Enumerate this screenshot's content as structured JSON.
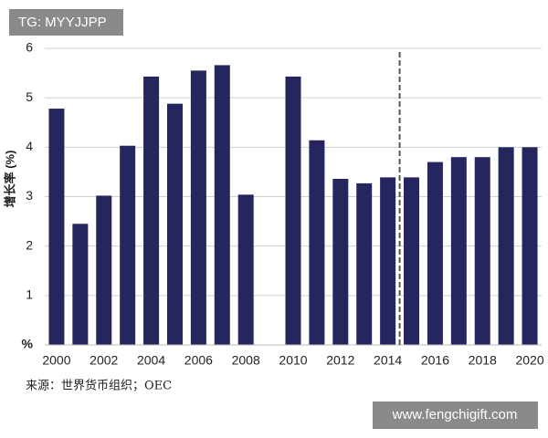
{
  "watermark_top": "TG: MYYJJPP",
  "watermark_bottom": "www.fengchigift.com",
  "source": "来源：世界货币组织；OEC",
  "chart_data": {
    "type": "bar",
    "y_label": "增长率 (%)",
    "categories": [
      "2000",
      null,
      "2002",
      null,
      "2004",
      null,
      "2006",
      null,
      "2008",
      null,
      "2010",
      null,
      "2012",
      null,
      "2014",
      null,
      "2016",
      null,
      "2018",
      null,
      "2020"
    ],
    "values": [
      4.78,
      2.45,
      3.02,
      4.03,
      5.43,
      4.88,
      5.55,
      5.66,
      3.04,
      null,
      5.43,
      4.14,
      3.36,
      3.27,
      3.39,
      3.39,
      3.7,
      3.8,
      3.8,
      4.0,
      4.0
    ],
    "color": "#25265e",
    "ylim": [
      0,
      6
    ],
    "yticks": [
      {
        "value": 0,
        "label": "%"
      },
      1,
      2,
      3,
      4,
      5,
      6
    ],
    "grid": true
  }
}
